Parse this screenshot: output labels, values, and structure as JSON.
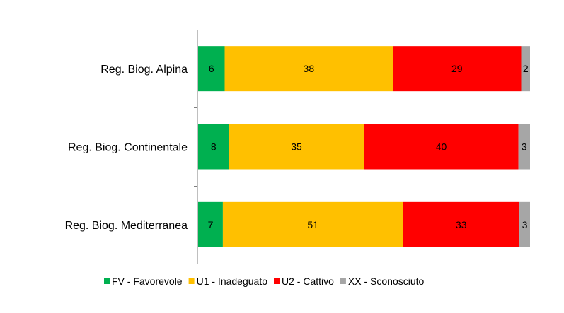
{
  "chart_data": {
    "type": "bar",
    "orientation": "horizontal",
    "stacked": "percent",
    "categories": [
      "Reg. Biog. Alpina",
      "Reg. Biog. Continentale",
      "Reg. Biog. Mediterranea"
    ],
    "series": [
      {
        "name": "FV - Favorevole",
        "values": [
          6,
          8,
          7
        ],
        "color": "#00b050"
      },
      {
        "name": "U1 - Inadeguato",
        "values": [
          38,
          35,
          51
        ],
        "color": "#ffc000"
      },
      {
        "name": "U2 - Cattivo",
        "values": [
          29,
          40,
          33
        ],
        "color": "#ff0000"
      },
      {
        "name": "XX - Sconosciuto",
        "values": [
          2,
          3,
          3
        ],
        "color": "#a6a6a6"
      }
    ],
    "data_labels": true,
    "legend": "bottom",
    "grid": false,
    "axis_line_color": "#7f7f7f"
  }
}
